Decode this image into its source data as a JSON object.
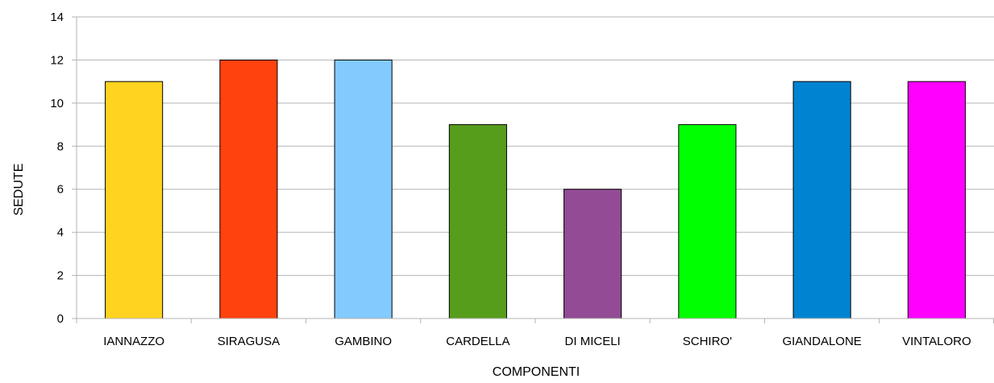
{
  "chart_data": {
    "type": "bar",
    "title": "",
    "xlabel": "COMPONENTI",
    "ylabel": "SEDUTE",
    "ylim": [
      0,
      14
    ],
    "yticks": [
      0,
      2,
      4,
      6,
      8,
      10,
      12,
      14
    ],
    "grid": true,
    "legend": "none",
    "categories": [
      "IANNAZZO",
      "SIRAGUSA",
      "GAMBINO",
      "CARDELLA",
      "DI MICELI",
      "SCHIRO'",
      "GIANDALONE",
      "VINTALORO"
    ],
    "values": [
      11,
      12,
      12,
      9,
      6,
      9,
      11,
      11
    ],
    "colors": [
      "#FFD320",
      "#FF420E",
      "#83CAFF",
      "#579D1C",
      "#924B94",
      "#00FF00",
      "#0084D1",
      "#FF00FF"
    ],
    "grid_color": "#b3b3b3",
    "bar_border_color": "#000000"
  }
}
